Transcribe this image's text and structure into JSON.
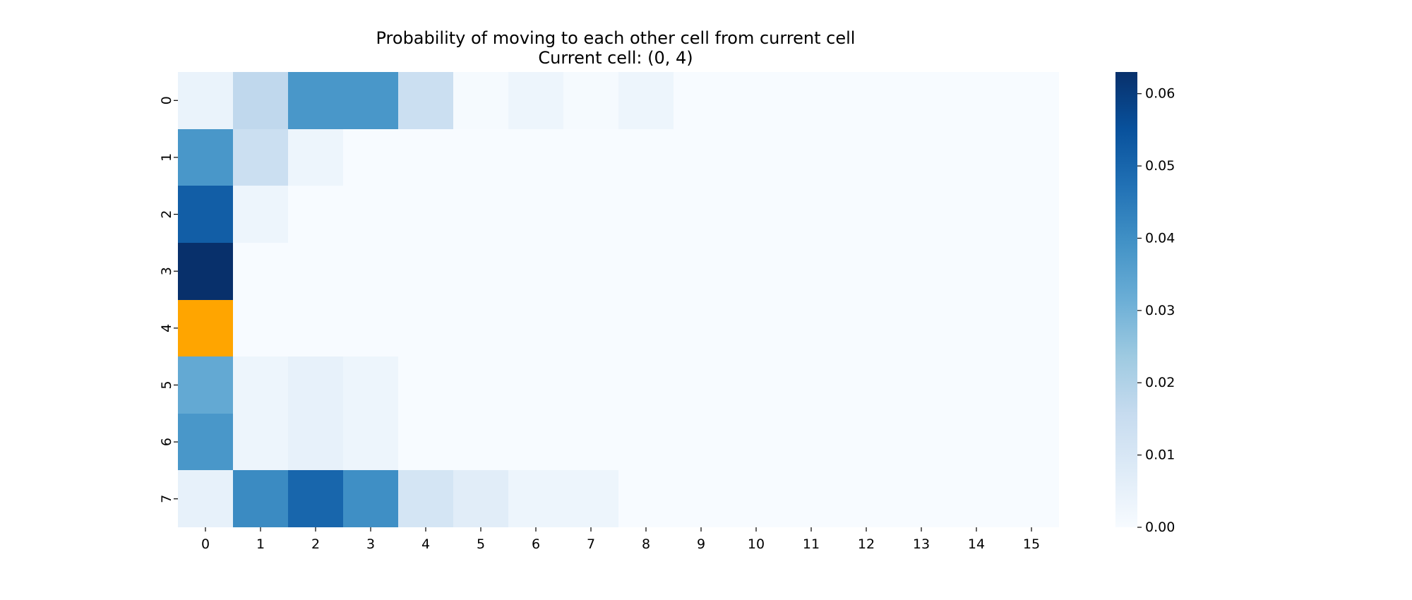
{
  "chart_data": {
    "type": "heatmap",
    "title": "Probability of moving to each other cell from current cell",
    "subtitle": "Current cell: (0, 4)",
    "xlabel": "",
    "ylabel": "",
    "x_tick_labels": [
      "0",
      "1",
      "2",
      "3",
      "4",
      "5",
      "6",
      "7",
      "8",
      "9",
      "10",
      "11",
      "12",
      "13",
      "14",
      "15"
    ],
    "y_tick_labels": [
      "0",
      "1",
      "2",
      "3",
      "4",
      "5",
      "6",
      "7"
    ],
    "highlight_cell": {
      "row": 4,
      "col": 0,
      "color": "#ffa500"
    },
    "colorscale": "Blues",
    "colorbar": {
      "vmin": 0.0,
      "vmax": 0.063,
      "ticks": [
        0.0,
        0.01,
        0.02,
        0.03,
        0.04,
        0.05,
        0.06
      ],
      "tick_labels": [
        "0.00",
        "0.01",
        "0.02",
        "0.03",
        "0.04",
        "0.05",
        "0.06"
      ]
    },
    "values": [
      [
        0.004,
        0.017,
        0.038,
        0.038,
        0.014,
        0.0005,
        0.003,
        0.0005,
        0.003,
        0,
        0,
        0,
        0,
        0,
        0,
        0
      ],
      [
        0.038,
        0.014,
        0.003,
        0,
        0,
        0,
        0,
        0,
        0,
        0,
        0,
        0,
        0,
        0,
        0,
        0
      ],
      [
        0.052,
        0.003,
        0,
        0,
        0,
        0,
        0,
        0,
        0,
        0,
        0,
        0,
        0,
        0,
        0,
        0
      ],
      [
        0.063,
        0,
        0,
        0,
        0,
        0,
        0,
        0,
        0,
        0,
        0,
        0,
        0,
        0,
        0,
        0
      ],
      [
        null,
        0,
        0,
        0,
        0,
        0,
        0,
        0,
        0,
        0,
        0,
        0,
        0,
        0,
        0,
        0
      ],
      [
        0.033,
        0.003,
        0.005,
        0.003,
        0,
        0,
        0,
        0,
        0,
        0,
        0,
        0,
        0,
        0,
        0,
        0
      ],
      [
        0.038,
        0.003,
        0.005,
        0.003,
        0,
        0,
        0,
        0,
        0,
        0,
        0,
        0,
        0,
        0,
        0,
        0
      ],
      [
        0.005,
        0.041,
        0.05,
        0.04,
        0.011,
        0.007,
        0.003,
        0.003,
        0,
        0,
        0,
        0,
        0,
        0,
        0,
        0
      ]
    ]
  }
}
